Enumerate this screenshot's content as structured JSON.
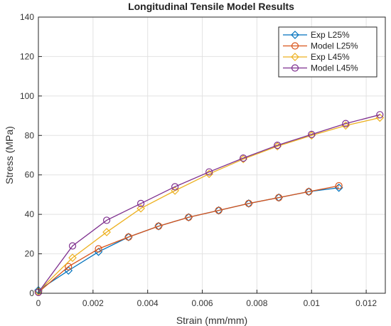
{
  "chart_data": {
    "type": "line",
    "title": "Longitudinal Tensile Model Results",
    "xlabel": "Strain (mm/mm)",
    "ylabel": "Stress (MPa)",
    "xlim": [
      0,
      0.0127
    ],
    "ylim": [
      0,
      140
    ],
    "xticks": [
      0,
      0.002,
      0.004,
      0.006,
      0.008,
      0.01,
      0.012
    ],
    "xtick_labels": [
      "0",
      "0.002",
      "0.004",
      "0.006",
      "0.008",
      "0.01",
      "0.012"
    ],
    "yticks": [
      0,
      20,
      40,
      60,
      80,
      100,
      120,
      140
    ],
    "ytick_labels": [
      "0",
      "20",
      "40",
      "60",
      "80",
      "100",
      "120",
      "140"
    ],
    "grid": true,
    "legend_position": "top-right",
    "series": [
      {
        "name": "Exp L25%",
        "color": "#0072BD",
        "marker": "diamond",
        "x": [
          0,
          0.0011,
          0.0022,
          0.0033,
          0.0044,
          0.0055,
          0.0066,
          0.0077,
          0.0088,
          0.0099,
          0.011
        ],
        "y": [
          1.5,
          11.5,
          21,
          28.5,
          34,
          38.5,
          42,
          45.5,
          48.5,
          51.5,
          53.5
        ]
      },
      {
        "name": "Model L25%",
        "color": "#D95319",
        "marker": "circle",
        "x": [
          0,
          0.0011,
          0.0022,
          0.0033,
          0.0044,
          0.0055,
          0.0066,
          0.0077,
          0.0088,
          0.0099,
          0.011
        ],
        "y": [
          0.5,
          13.5,
          22.5,
          28.5,
          34,
          38.5,
          42,
          45.5,
          48.5,
          51.5,
          54.5
        ]
      },
      {
        "name": "Exp L45%",
        "color": "#EDB120",
        "marker": "diamond",
        "x": [
          0,
          0.00125,
          0.0025,
          0.00375,
          0.005,
          0.00625,
          0.0075,
          0.00875,
          0.01,
          0.01125,
          0.0125
        ],
        "y": [
          1,
          18,
          31,
          43,
          52,
          60.5,
          68,
          74.5,
          80,
          85,
          89
        ]
      },
      {
        "name": "Model L45%",
        "color": "#7E2F8E",
        "marker": "circle",
        "x": [
          0,
          0.00125,
          0.0025,
          0.00375,
          0.005,
          0.00625,
          0.0075,
          0.00875,
          0.01,
          0.01125,
          0.0125
        ],
        "y": [
          0.5,
          24,
          37,
          45.5,
          54,
          61.5,
          68.5,
          75,
          80.5,
          86,
          90.5
        ]
      }
    ]
  }
}
